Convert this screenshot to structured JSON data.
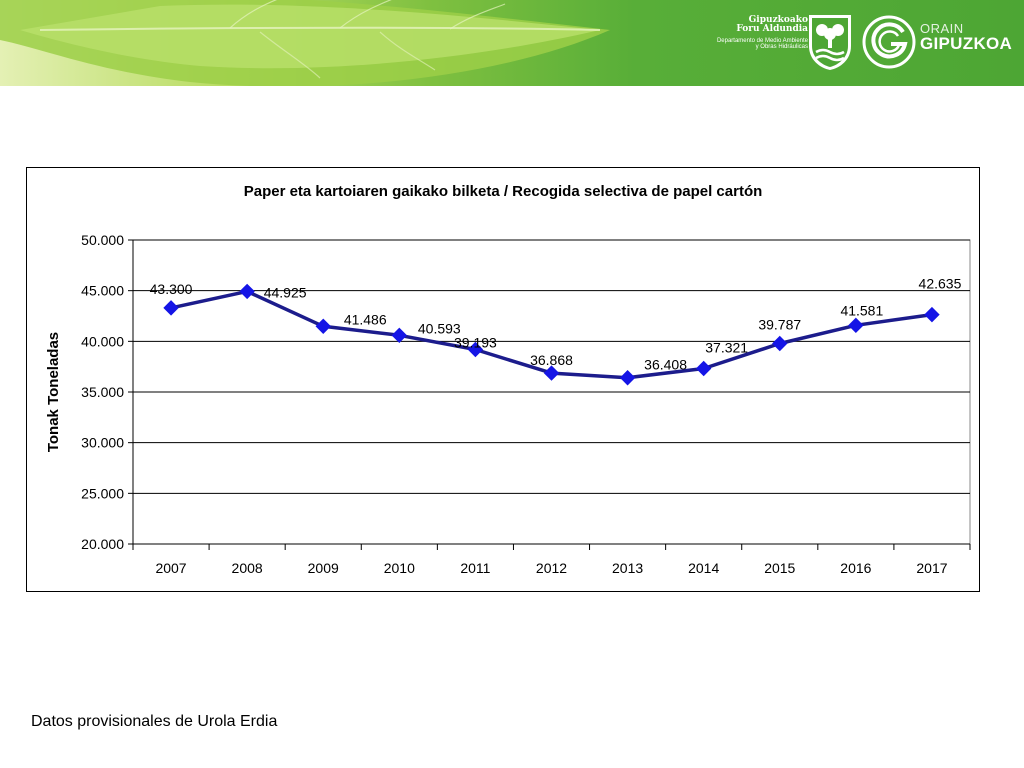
{
  "header": {
    "org_line1": "Gipuzkoako",
    "org_line2": "Foru Aldundia",
    "dept_line1": "Departamento de Medio Ambiente",
    "dept_line2": "y Obras Hidráulicas",
    "brand_line1": "ORAIN",
    "brand_line2": "GIPUZKOA"
  },
  "colors": {
    "series": "#1c1c8c",
    "marker": "#1515e6",
    "grid": "#000000",
    "plot_area": "#ffffff"
  },
  "chart_data": {
    "type": "line",
    "title": "Paper eta kartoiaren gaikako bilketa / Recogida selectiva de  papel cartón",
    "xlabel": "",
    "ylabel": "Tonak Toneladas",
    "categories": [
      "2007",
      "2008",
      "2009",
      "2010",
      "2011",
      "2012",
      "2013",
      "2014",
      "2015",
      "2016",
      "2017"
    ],
    "series": [
      {
        "values": [
          43300,
          44925,
          41486,
          40593,
          39193,
          36868,
          36408,
          37321,
          39787,
          41581,
          42635
        ]
      }
    ],
    "data_labels": [
      "43.300",
      "44.925",
      "41.486",
      "40.593",
      "39.193",
      "36.868",
      "36.408",
      "37.321",
      "39.787",
      "41.581",
      "42.635"
    ],
    "ylim": [
      20000,
      50000
    ],
    "yticks": [
      20000,
      25000,
      30000,
      35000,
      40000,
      45000,
      50000
    ],
    "ytick_labels": [
      "20.000",
      "25.000",
      "30.000",
      "35.000",
      "40.000",
      "45.000",
      "50.000"
    ],
    "grid": true,
    "legend": "none",
    "marker": "diamond"
  },
  "footnote": "Datos provisionales de Urola Erdia"
}
